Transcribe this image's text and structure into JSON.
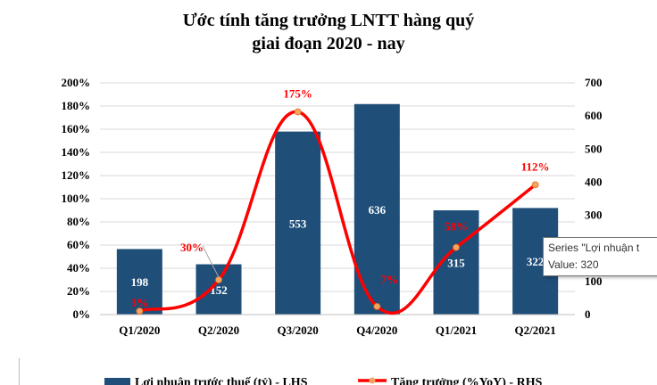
{
  "title": {
    "line1": "Ước tính tăng trưởng LNTT hàng quý",
    "line2": "giai đoạn 2020 - nay"
  },
  "chart_data": {
    "type": "bar",
    "categories": [
      "Q1/2020",
      "Q2/2020",
      "Q3/2020",
      "Q4/2020",
      "Q1/2021",
      "Q2/2021"
    ],
    "series": [
      {
        "name": "Lợi nhuận trước thuế (tỷ) - LHS",
        "kind": "bar",
        "axis": "right",
        "values": [
          198,
          152,
          553,
          636,
          315,
          322
        ],
        "labels": [
          "198",
          "152",
          "553",
          "636",
          "315",
          "322"
        ],
        "color": "#1f4e79"
      },
      {
        "name": "Tăng trưởng (%YoY) - RHS",
        "kind": "line",
        "axis": "left",
        "values": [
          3,
          30,
          175,
          7,
          58,
          112
        ],
        "labels": [
          "3%",
          "30%",
          "175%",
          "7%",
          "58%",
          "112%"
        ],
        "color": "#ff0000",
        "marker_color": "#f4a460"
      }
    ],
    "left_axis": {
      "ticks": [
        "0%",
        "20%",
        "40%",
        "60%",
        "80%",
        "100%",
        "120%",
        "140%",
        "160%",
        "180%",
        "200%"
      ],
      "ylim": [
        0,
        200
      ]
    },
    "right_axis": {
      "ticks": [
        "0",
        "100",
        "200",
        "300",
        "400",
        "500",
        "600",
        "700"
      ],
      "ylim": [
        0,
        700
      ]
    },
    "grid": true,
    "legend": "bottom"
  },
  "tooltip": {
    "line1": "Series \"Lợi nhuận t",
    "line2": "Value: 320"
  }
}
